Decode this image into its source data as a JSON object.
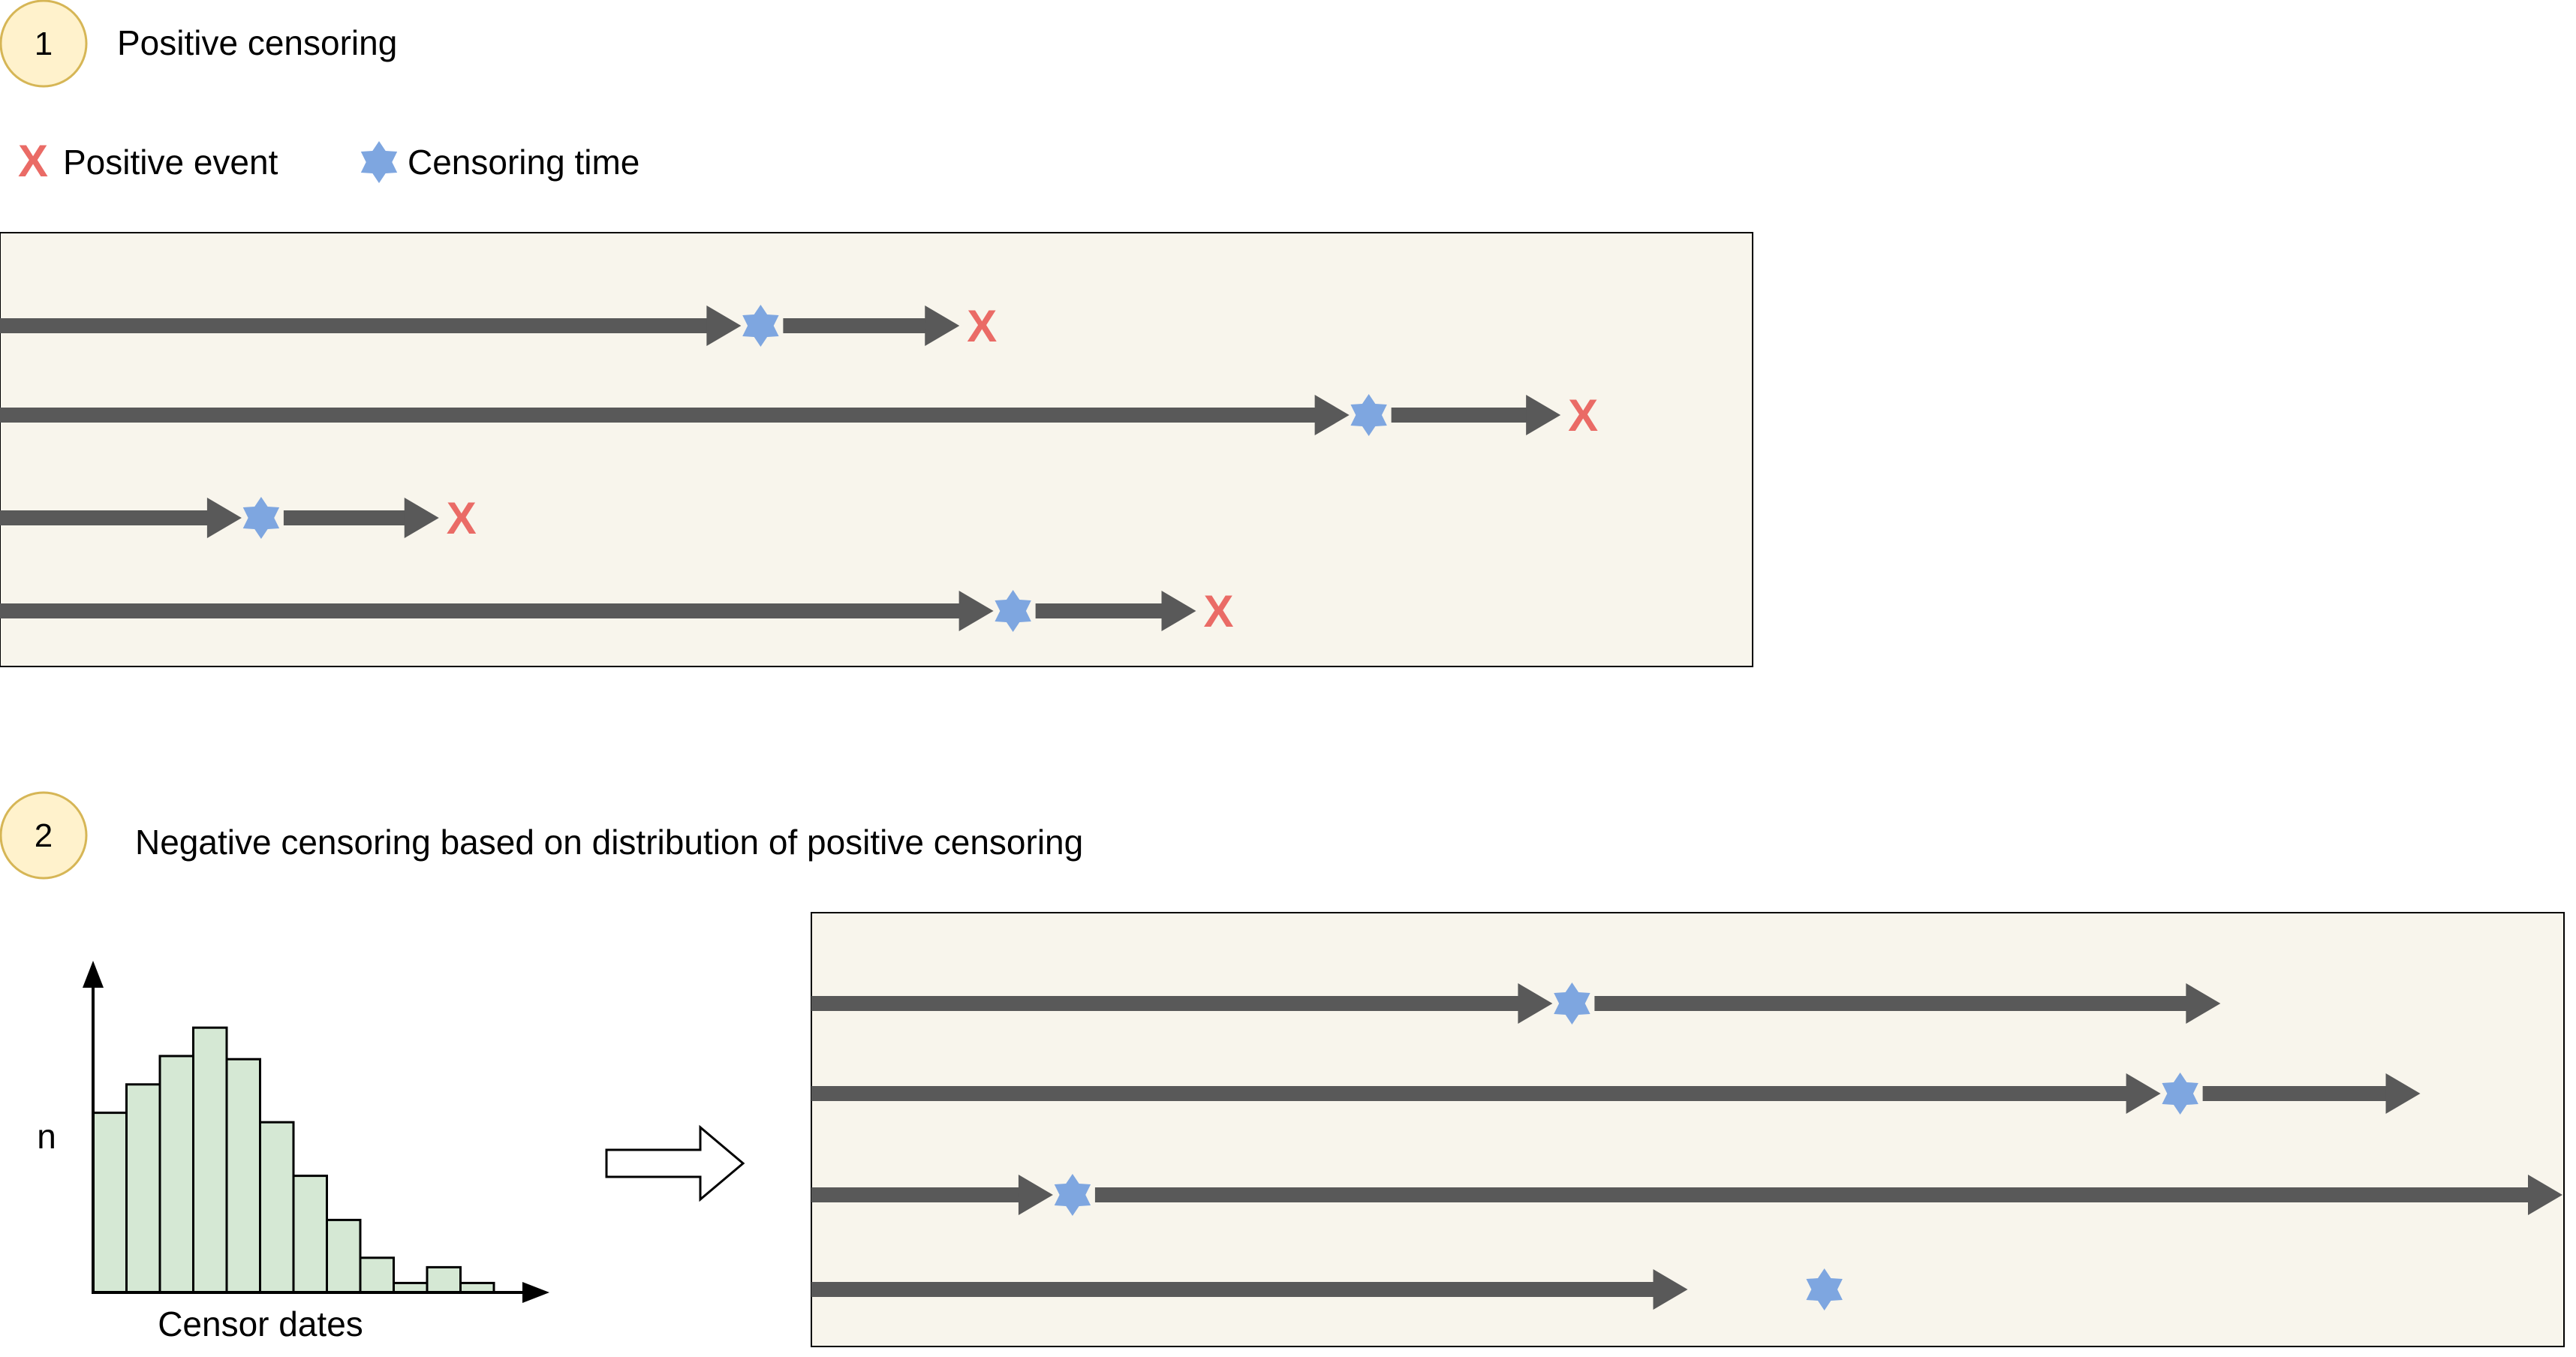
{
  "colors": {
    "panel_fill": "#f8f5ec",
    "arrow": "#595959",
    "positive_event": "#ea6b66",
    "censoring_time": "#7ea6e0",
    "badge_fill": "#fff2cc",
    "badge_stroke": "#d6b656",
    "histogram_fill": "#d5e8d4"
  },
  "legend": {
    "positive_event_label": "Positive event",
    "positive_event_icon": "x-mark-icon",
    "censoring_time_label": "Censoring time",
    "censoring_time_icon": "star-icon"
  },
  "section1": {
    "badge": "1",
    "title": "Positive censoring",
    "timelines": [
      {
        "censor_at": 0.434,
        "event_at": 0.556
      },
      {
        "censor_at": 0.781,
        "event_at": 0.899
      },
      {
        "censor_at": 0.149,
        "event_at": 0.259
      },
      {
        "censor_at": 0.578,
        "event_at": 0.691
      }
    ]
  },
  "section2": {
    "badge": "2",
    "title": "Negative censoring based on distribution of positive censoring",
    "histogram": {
      "y_label": "n",
      "x_label": "Censor dates",
      "bar_counts": [
        0.57,
        0.66,
        0.75,
        0.84,
        0.74,
        0.54,
        0.37,
        0.23,
        0.11,
        0.03,
        0.08,
        0.03
      ]
    },
    "timelines": [
      {
        "censor_at": 0.434,
        "end_at": 0.804
      },
      {
        "censor_at": 0.781,
        "end_at": 0.918
      },
      {
        "censor_at": 0.149,
        "end_at": 1.0
      },
      {
        "censor_at": 0.578,
        "end_at": 0.5
      }
    ]
  }
}
